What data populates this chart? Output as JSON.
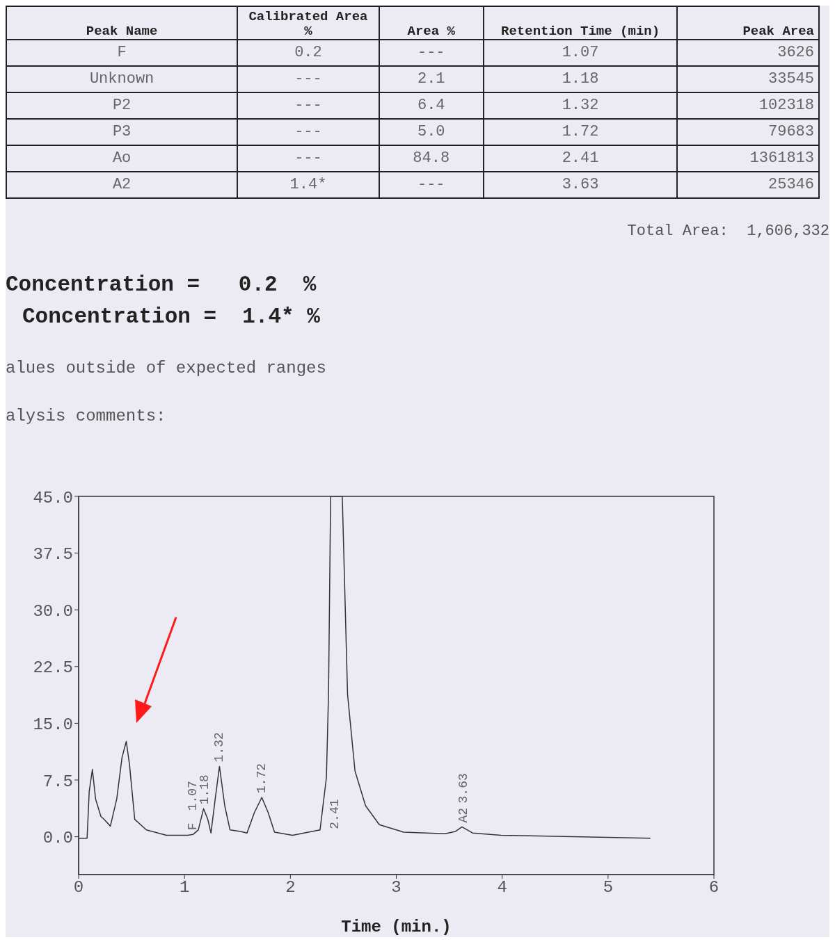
{
  "chart_data": {
    "type": "line",
    "xlabel": "Time (min.)",
    "x": [
      0,
      0.08,
      0.1,
      0.13,
      0.16,
      0.21,
      0.24,
      0.3,
      0.36,
      0.41,
      0.45,
      0.48,
      0.53,
      0.64,
      0.83,
      1.03,
      1.08,
      1.13,
      1.18,
      1.22,
      1.25,
      1.29,
      1.33,
      1.38,
      1.43,
      1.53,
      1.59,
      1.66,
      1.73,
      1.79,
      1.85,
      2.02,
      2.28,
      2.34,
      2.36,
      2.38,
      2.49,
      2.54,
      2.61,
      2.71,
      2.84,
      3.07,
      3.46,
      3.56,
      3.62,
      3.72,
      3.99,
      5.4
    ],
    "series": [
      {
        "color": "#333333",
        "values": [
          -0.2,
          -0.2,
          6.0,
          8.9,
          5.0,
          2.7,
          2.3,
          1.4,
          5.0,
          10.5,
          12.6,
          9.6,
          2.3,
          0.9,
          0.2,
          0.2,
          0.3,
          0.9,
          3.7,
          2.3,
          0.5,
          5.0,
          9.3,
          4.1,
          0.9,
          0.7,
          0.5,
          3.2,
          5.2,
          3.2,
          0.6,
          0.2,
          0.9,
          7.8,
          18.8,
          45,
          45,
          18.8,
          8.7,
          4.1,
          1.6,
          0.6,
          0.4,
          0.7,
          1.3,
          0.5,
          0.2,
          -0.2
        ]
      }
    ],
    "xlim": [
      0,
      6
    ],
    "xticks": [
      0,
      1,
      2,
      3,
      4,
      5,
      6
    ],
    "ylim": [
      -5,
      45
    ],
    "yticks": [
      {
        "value": 0,
        "label": "0.0"
      },
      {
        "value": 7.5,
        "label": "7.5"
      },
      {
        "value": 15,
        "label": "15.0"
      },
      {
        "value": 22.5,
        "label": "22.5"
      },
      {
        "value": 30,
        "label": "30.0"
      },
      {
        "value": 37.5,
        "label": "37.5"
      },
      {
        "value": 45,
        "label": "45.0"
      }
    ],
    "annotations": [
      "Peak Name",
      "Calibrated Area %",
      "Area %",
      "Retention Time (min)",
      "Peak Area",
      "F",
      "0.2",
      "---",
      "1.07",
      "3626",
      "Unknown",
      "---",
      "2.1",
      "1.18",
      "33545",
      "P2",
      "---",
      "6.4",
      "1.32",
      "102318",
      "P3",
      "---",
      "5.0",
      "1.72",
      "79683",
      "Ao",
      "---",
      "84.8",
      "2.41",
      "1361813",
      "A2",
      "1.4*",
      "---",
      "3.63",
      "25346",
      "Total Area:  1,606,332",
      "Concentration =   0.2  %",
      "Concentration =  1.4* %",
      "alues outside of expected ranges",
      "alysis comments:",
      "2.41",
      {
        "text": "1.07",
        "x": 1.07,
        "y": 0.3
      },
      {
        "text": "F",
        "x": 1.07,
        "y": 0.3
      },
      {
        "text": "1.18",
        "x": 1.18,
        "y": 3.7
      },
      {
        "text": "1.32",
        "x": 1.32,
        "y": 9.3
      },
      {
        "text": "1.72",
        "x": 1.72,
        "y": 5.2
      },
      {
        "text": "3.63",
        "x": 3.63,
        "y": 1.3
      },
      {
        "text": "A2",
        "x": 3.63,
        "y": 1.3
      }
    ]
  }
}
